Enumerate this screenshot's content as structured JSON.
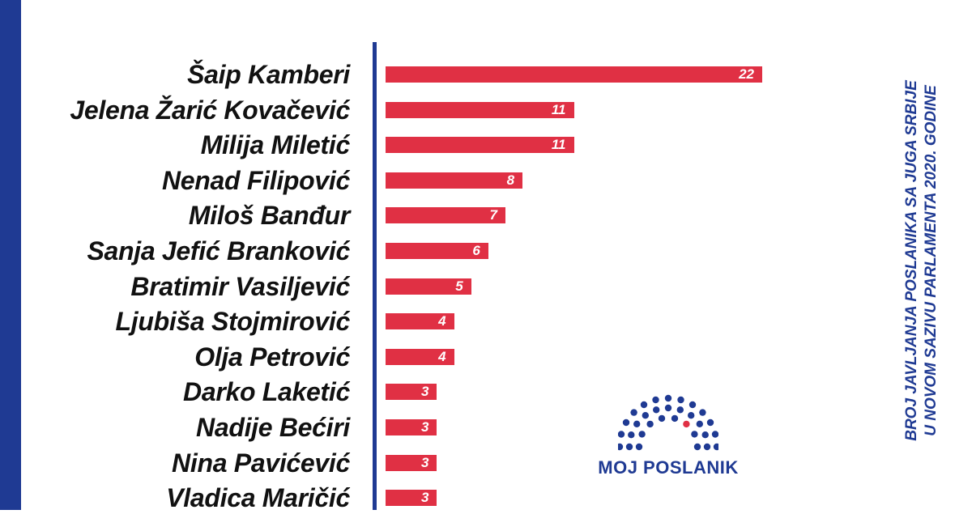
{
  "colors": {
    "accent_blue": "#1F3A93",
    "bar_red": "#E03044",
    "text_dark": "#111111",
    "logo_dot_red": "#E03044"
  },
  "side_title": {
    "line1": "BROJ JAVLJANJA POSLANIKA SA JUGA SRBIJE",
    "line2": "U NOVOM SAZIVU PARLAMENTA 2020. GODINE"
  },
  "logo": {
    "text": "MOJ POSLANIK"
  },
  "chart_data": {
    "type": "bar",
    "orientation": "horizontal",
    "title": "",
    "categories": [
      "Šaip Kamberi",
      "Jelena Žarić Kovačević",
      "Milija Miletić",
      "Nenad Filipović",
      "Miloš Banđur",
      "Sanja Jefić Branković",
      "Bratimir Vasiljević",
      "Ljubiša Stojmirović",
      "Olja Petrović",
      "Darko Laketić",
      "Nadije Bećiri",
      "Nina Pavićević",
      "Vladica Maričić"
    ],
    "values": [
      22,
      11,
      11,
      8,
      7,
      6,
      5,
      4,
      4,
      3,
      3,
      3,
      3
    ],
    "xlim": [
      0,
      22
    ],
    "grid": false,
    "legend": "none"
  }
}
